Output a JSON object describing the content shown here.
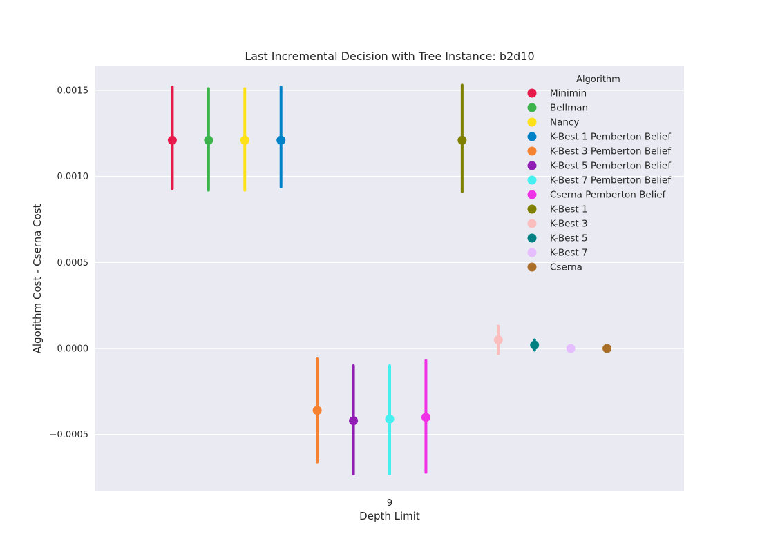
{
  "chart_data": {
    "type": "point",
    "title": "Last Incremental Decision with Tree Instance: b2d10",
    "xlabel": "Depth Limit",
    "ylabel": "Algorithm Cost - Cserna Cost",
    "categories": [
      "9"
    ],
    "ylim": [
      -0.00083,
      0.00164
    ],
    "yticks": [
      {
        "value": 0.0015,
        "label": "0.0015"
      },
      {
        "value": 0.001,
        "label": "0.0010"
      },
      {
        "value": 0.0005,
        "label": "0.0005"
      },
      {
        "value": 0.0,
        "label": "0.0000"
      },
      {
        "value": -0.0005,
        "label": "−0.0005"
      }
    ],
    "grid": true,
    "background": "#EAEAF2",
    "legend": {
      "title": "Algorithm",
      "position": "top-right"
    },
    "series": [
      {
        "name": "Minimin",
        "color": "#E6194B",
        "value": 0.00121,
        "ci": [
          0.00093,
          0.00152
        ]
      },
      {
        "name": "Bellman",
        "color": "#3CB44B",
        "value": 0.00121,
        "ci": [
          0.00092,
          0.00151
        ]
      },
      {
        "name": "Nancy",
        "color": "#FFE119",
        "value": 0.00121,
        "ci": [
          0.00092,
          0.00151
        ]
      },
      {
        "name": "K-Best 1 Pemberton Belief",
        "color": "#0082C8",
        "value": 0.00121,
        "ci": [
          0.00094,
          0.00152
        ]
      },
      {
        "name": "K-Best 3 Pemberton Belief",
        "color": "#F58231",
        "value": -0.00036,
        "ci": [
          -0.00066,
          -6e-05
        ]
      },
      {
        "name": "K-Best 5 Pemberton Belief",
        "color": "#911EB4",
        "value": -0.00042,
        "ci": [
          -0.00073,
          -0.0001
        ]
      },
      {
        "name": "K-Best 7 Pemberton Belief",
        "color": "#46F0F0",
        "value": -0.00041,
        "ci": [
          -0.00073,
          -0.0001
        ]
      },
      {
        "name": "Cserna Pemberton Belief",
        "color": "#F032E6",
        "value": -0.0004,
        "ci": [
          -0.00072,
          -7e-05
        ]
      },
      {
        "name": "K-Best 1",
        "color": "#808000",
        "value": 0.00121,
        "ci": [
          0.00091,
          0.00153
        ]
      },
      {
        "name": "K-Best 3",
        "color": "#FABEBE",
        "value": 5e-05,
        "ci": [
          -3e-05,
          0.00013
        ]
      },
      {
        "name": "K-Best 5",
        "color": "#008080",
        "value": 2e-05,
        "ci": [
          -1e-05,
          5e-05
        ]
      },
      {
        "name": "K-Best 7",
        "color": "#E6BEFF",
        "value": 0.0,
        "ci": [
          0.0,
          0.0
        ]
      },
      {
        "name": "Cserna",
        "color": "#AA6E28",
        "value": 0.0,
        "ci": [
          0.0,
          0.0
        ]
      }
    ]
  }
}
